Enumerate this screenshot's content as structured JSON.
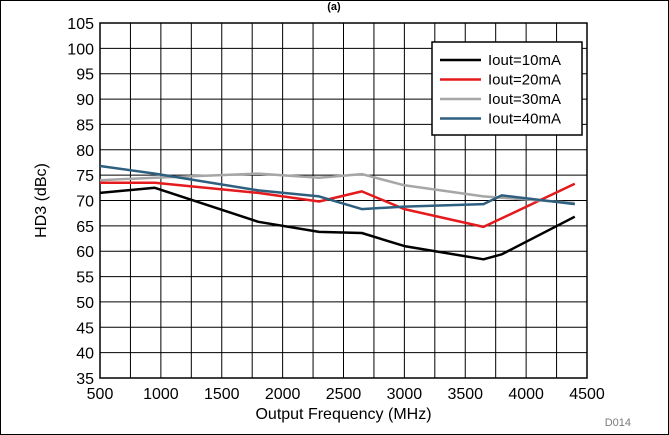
{
  "top_caption": "(a)",
  "figure_id": "D014",
  "chart_data": {
    "type": "line",
    "title": "",
    "xlabel": "Output Frequency (MHz)",
    "ylabel": "HD3 (dBc)",
    "xlim": [
      500,
      4500
    ],
    "ylim": [
      35,
      105
    ],
    "xticks": [
      500,
      1000,
      1500,
      2000,
      2500,
      3000,
      3500,
      4000,
      4500
    ],
    "yticks": [
      35,
      40,
      45,
      50,
      55,
      60,
      65,
      70,
      75,
      80,
      85,
      90,
      95,
      100,
      105
    ],
    "grid": true,
    "legend_position": "top-right",
    "series": [
      {
        "name": "Iout=10mA",
        "color": "#000000",
        "x": [
          500,
          950,
          1800,
          2300,
          2650,
          3000,
          3650,
          3800,
          4400
        ],
        "y": [
          71.5,
          72.5,
          65.8,
          63.8,
          63.6,
          61.0,
          58.4,
          59.4,
          66.8
        ]
      },
      {
        "name": "Iout=20mA",
        "color": "#e41a1c",
        "x": [
          500,
          950,
          1800,
          2300,
          2650,
          3000,
          3650,
          4400
        ],
        "y": [
          73.5,
          73.5,
          71.5,
          69.8,
          71.8,
          68.3,
          64.8,
          73.3
        ]
      },
      {
        "name": "Iout=30mA",
        "color": "#a6a6a6",
        "x": [
          500,
          950,
          1800,
          2300,
          2650,
          3000,
          3650,
          4400
        ],
        "y": [
          74.0,
          74.5,
          75.3,
          74.5,
          75.2,
          73.0,
          70.8,
          69.5
        ]
      },
      {
        "name": "Iout=40mA",
        "color": "#2f5f7f",
        "x": [
          500,
          950,
          1800,
          2300,
          2650,
          3000,
          3650,
          3800,
          4400
        ],
        "y": [
          76.8,
          75.3,
          72.0,
          70.8,
          68.3,
          68.8,
          69.3,
          71.0,
          69.3
        ]
      }
    ]
  }
}
